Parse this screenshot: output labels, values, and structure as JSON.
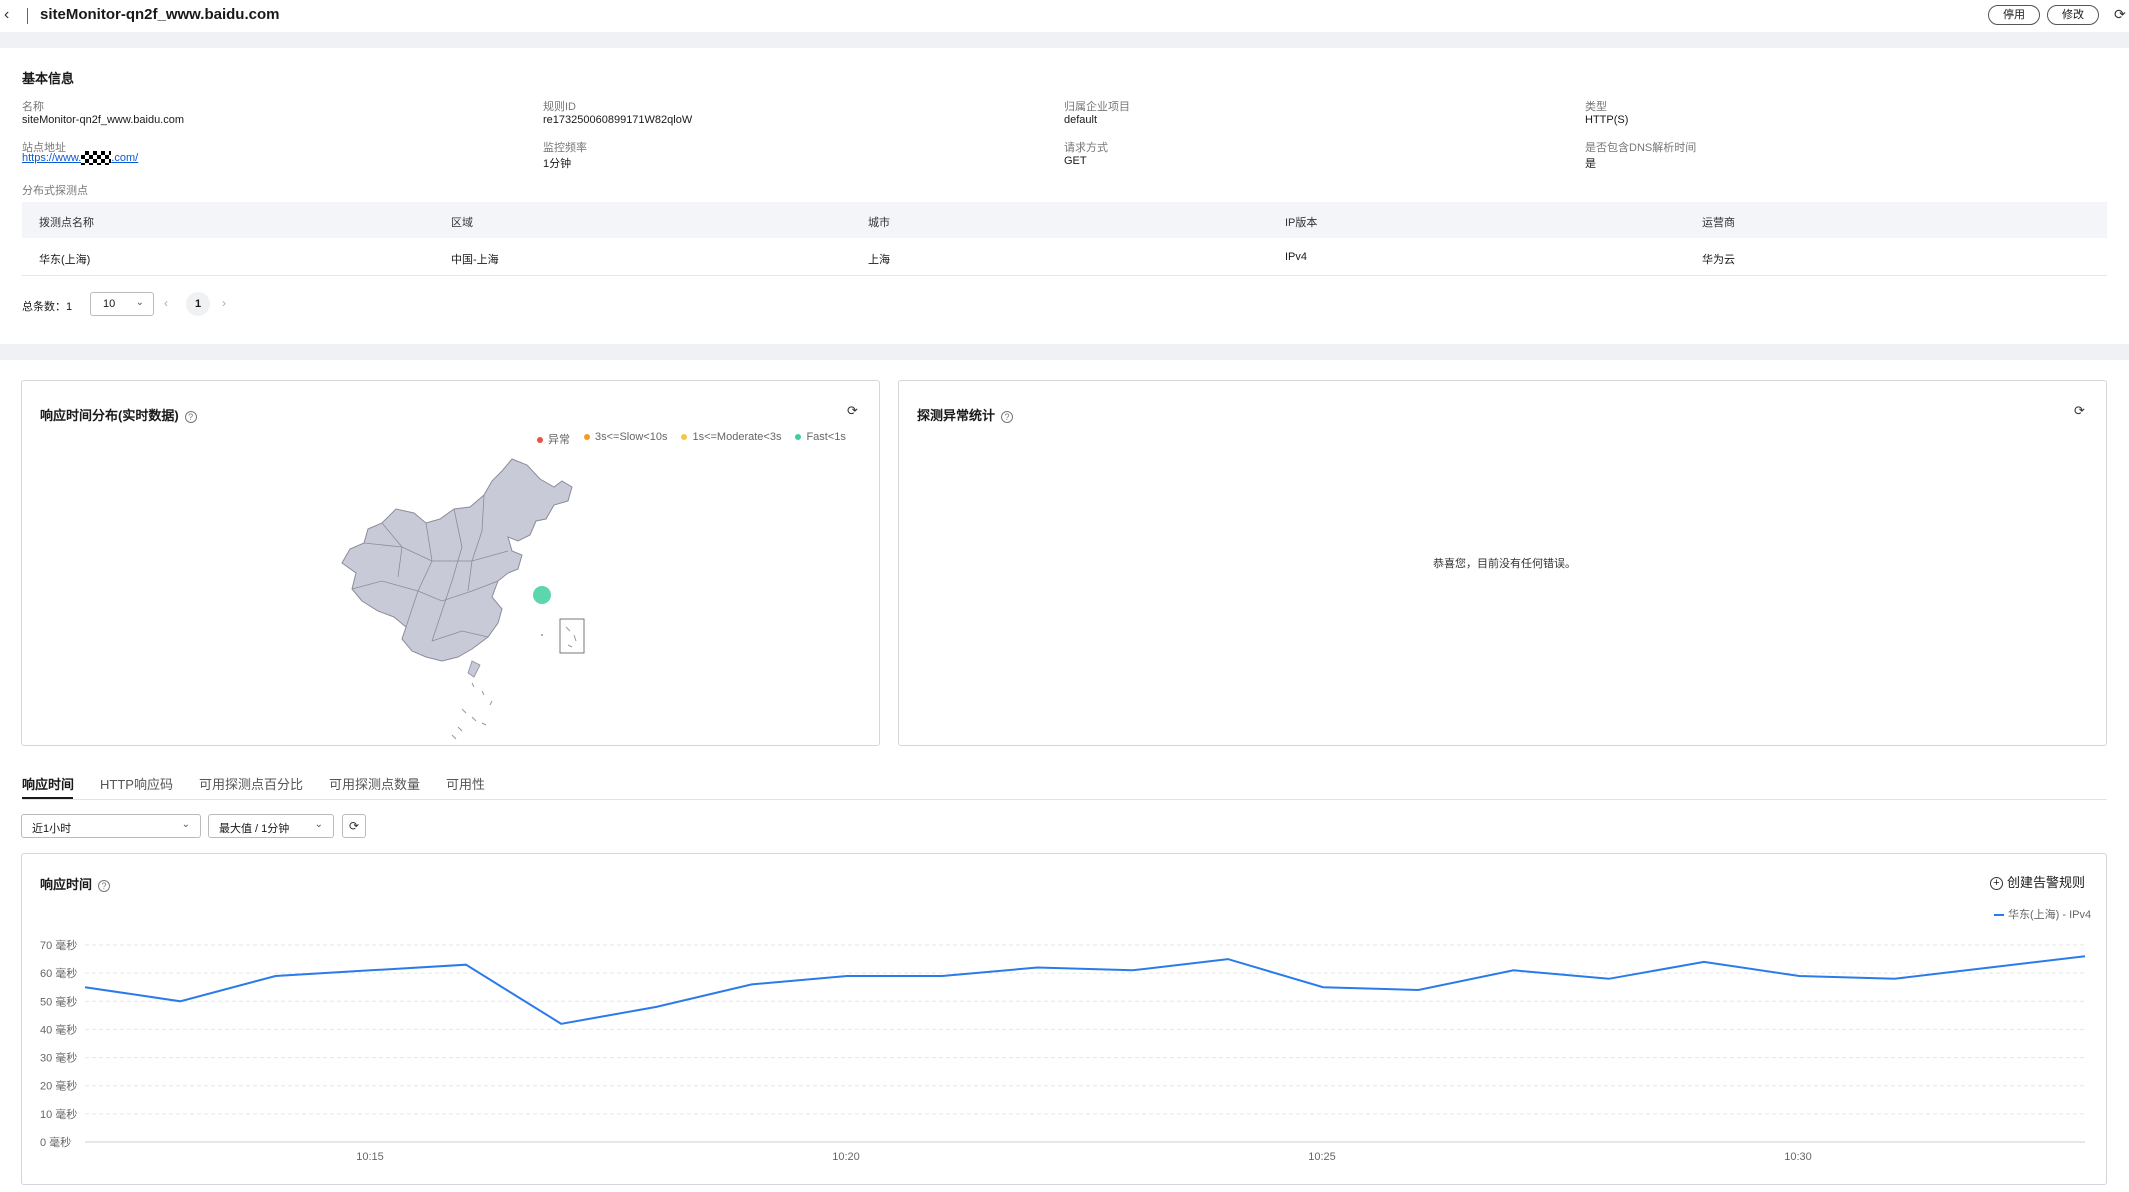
{
  "header": {
    "back_icon": "chevron-left-icon",
    "title": "siteMonitor-qn2f_www.baidu.com",
    "disable_label": "停用",
    "edit_label": "修改",
    "refresh_icon": "refresh-icon"
  },
  "basic_info": {
    "section_title": "基本信息",
    "fields": {
      "name_label": "名称",
      "name_value": "siteMonitor-qn2f_www.baidu.com",
      "rule_id_label": "规则ID",
      "rule_id_value": "re173250060899171W82qloW",
      "project_label": "归属企业项目",
      "project_value": "default",
      "type_label": "类型",
      "type_value": "HTTP(S)",
      "site_label": "站点地址",
      "site_value_prefix": "https://www.",
      "site_value_suffix": ".com/",
      "freq_label": "监控频率",
      "freq_value": "1分钟",
      "method_label": "请求方式",
      "method_value": "GET",
      "dns_label": "是否包含DNS解析时间",
      "dns_value": "是"
    },
    "probe_label": "分布式探测点",
    "table": {
      "headers": [
        "拨测点名称",
        "区域",
        "城市",
        "IP版本",
        "运营商"
      ],
      "rows": [
        [
          "华东(上海)",
          "中国-上海",
          "上海",
          "IPv4",
          "华为云"
        ]
      ]
    },
    "pager": {
      "total": "总条数：1",
      "page_size": "10",
      "page": "1"
    }
  },
  "response_map": {
    "title": "响应时间分布(实时数据)",
    "legend": [
      {
        "label": "异常",
        "color": "#e8523f"
      },
      {
        "label": "3s<=Slow<10s",
        "color": "#f59a23"
      },
      {
        "label": "1s<=Moderate<3s",
        "color": "#f7c744"
      },
      {
        "label": "Fast<1s",
        "color": "#3fcf9f"
      }
    ]
  },
  "anomaly": {
    "title": "探测异常统计",
    "empty_message": "恭喜您，目前没有任何错误。"
  },
  "tabs": [
    "响应时间",
    "HTTP响应码",
    "可用探测点百分比",
    "可用探测点数量",
    "可用性"
  ],
  "filters": {
    "range": "近1小时",
    "agg": "最大值 / 1分钟"
  },
  "chart_panel": {
    "title": "响应时间",
    "create_alarm": "创建告警规则"
  },
  "chart_data": {
    "type": "line",
    "title": "响应时间",
    "y_ticks": [
      "0 毫秒",
      "10 毫秒",
      "20 毫秒",
      "30 毫秒",
      "40 毫秒",
      "50 毫秒",
      "60 毫秒",
      "70 毫秒"
    ],
    "ylim": [
      0,
      70
    ],
    "x_ticks": [
      "10:15",
      "10:20",
      "10:25",
      "10:30"
    ],
    "series": [
      {
        "name": "华东(上海) - IPv4",
        "color": "#2a7bea",
        "values": [
          55,
          50,
          59,
          61,
          63,
          42,
          48,
          56,
          59,
          59,
          62,
          61,
          65,
          55,
          54,
          61,
          58,
          64,
          59,
          58,
          62,
          66
        ]
      }
    ],
    "grid": true,
    "legend_position": "top-right"
  }
}
